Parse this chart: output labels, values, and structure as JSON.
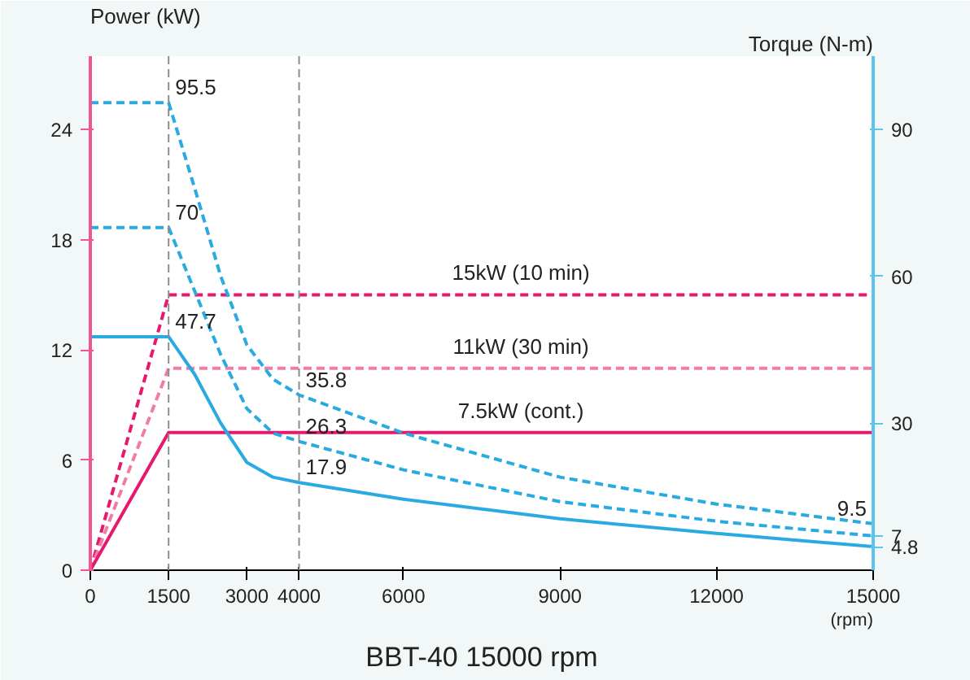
{
  "chart_data": {
    "type": "line",
    "title": "BBT-40 15000 rpm",
    "ylabel": "Power (kW)",
    "y2label": "Torque (N-m)",
    "xlabel": "(rpm)",
    "xlim": [
      0,
      15000
    ],
    "xticks": [
      0,
      1500,
      3000,
      4000,
      6000,
      9000,
      12000,
      15000
    ],
    "ylim": [
      0,
      28
    ],
    "yticks": [
      0,
      6,
      12,
      18,
      24
    ],
    "y2lim": [
      0,
      105
    ],
    "y2ticks": [
      4.8,
      7,
      30,
      60,
      90
    ],
    "grid": false,
    "marker": "none",
    "ref_lines": [
      {
        "axis": "x",
        "value": 1500,
        "color": "#8c8c8c",
        "line_style": "dashed"
      },
      {
        "axis": "x",
        "value": 4000,
        "color": "#8c8c8c",
        "line_style": "dashed"
      }
    ],
    "series": [
      {
        "name": "15kW (10 min)",
        "color": "#e6196e",
        "line_style": "dashed",
        "x": [
          0,
          1500,
          15000
        ],
        "values": [
          0,
          15,
          15
        ]
      },
      {
        "name": "11kW (30 min)",
        "color": "#f07ca6",
        "line_style": "dashed",
        "x": [
          0,
          1500,
          15000
        ],
        "values": [
          0,
          11,
          11
        ]
      },
      {
        "name": "7.5kW (cont.)",
        "color": "#e6196e",
        "line_style": "solid",
        "x": [
          0,
          1500,
          15000
        ],
        "values": [
          0,
          7.5,
          7.5
        ]
      },
      {
        "color": "#29abe2",
        "line_style": "dashed",
        "axis": "y2",
        "x": [
          0,
          1500,
          2000,
          2500,
          3000,
          3500,
          4000,
          6000,
          9000,
          12000,
          15000
        ],
        "values": [
          95.5,
          95.5,
          78,
          60,
          46,
          39,
          35.8,
          28,
          19,
          13.5,
          9.5
        ],
        "value_labels": [
          null,
          "95.5",
          null,
          null,
          null,
          null,
          "35.8",
          null,
          null,
          null,
          "9.5"
        ]
      },
      {
        "color": "#29abe2",
        "line_style": "dashed",
        "axis": "y2",
        "x": [
          0,
          1500,
          2000,
          2500,
          3000,
          3500,
          4000,
          6000,
          9000,
          12000,
          15000
        ],
        "values": [
          70,
          70,
          57,
          44,
          33,
          28,
          26.3,
          20.5,
          14,
          10,
          7
        ],
        "value_labels": [
          null,
          "70",
          null,
          null,
          null,
          null,
          "26.3",
          null,
          null,
          null,
          null
        ]
      },
      {
        "color": "#29abe2",
        "line_style": "solid",
        "axis": "y2",
        "x": [
          0,
          1500,
          2000,
          2500,
          3000,
          3500,
          4000,
          6000,
          9000,
          12000,
          15000
        ],
        "values": [
          47.7,
          47.7,
          40,
          30,
          22,
          19,
          17.9,
          14.5,
          10.5,
          7.5,
          4.8
        ],
        "value_labels": [
          null,
          "47.7",
          null,
          null,
          null,
          null,
          "17.9",
          null,
          null,
          null,
          null
        ]
      }
    ]
  }
}
